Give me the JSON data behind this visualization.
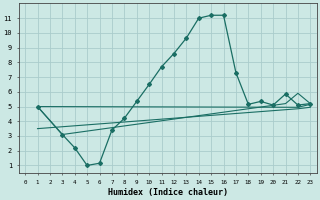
{
  "title": "",
  "xlabel": "Humidex (Indice chaleur)",
  "background_color": "#cce8e4",
  "grid_color": "#aacccc",
  "line_color": "#1a6e64",
  "xlim": [
    -0.5,
    23.5
  ],
  "ylim": [
    0.5,
    12.0
  ],
  "xticks": [
    0,
    1,
    2,
    3,
    4,
    5,
    6,
    7,
    8,
    9,
    10,
    11,
    12,
    13,
    14,
    15,
    16,
    17,
    18,
    19,
    20,
    21,
    22,
    23
  ],
  "yticks": [
    1,
    2,
    3,
    4,
    5,
    6,
    7,
    8,
    9,
    10,
    11
  ],
  "line1_x": [
    1,
    3,
    4,
    5,
    6,
    7,
    8,
    9,
    10,
    11,
    12,
    13,
    14,
    15,
    16,
    17,
    18,
    19,
    20,
    21,
    22,
    23
  ],
  "line1_y": [
    5.0,
    3.1,
    2.2,
    1.0,
    1.15,
    3.4,
    4.2,
    5.35,
    6.5,
    7.7,
    8.6,
    9.65,
    11.0,
    11.2,
    11.2,
    7.3,
    5.15,
    5.35,
    5.1,
    5.85,
    5.1,
    5.2
  ],
  "line2_x": [
    1,
    3,
    21,
    22,
    23
  ],
  "line2_y": [
    5.0,
    3.1,
    5.2,
    5.9,
    5.2
  ],
  "line3_x": [
    1,
    22,
    23
  ],
  "line3_y": [
    5.0,
    4.95,
    5.15
  ],
  "line4_x": [
    1,
    22,
    23
  ],
  "line4_y": [
    3.5,
    4.85,
    4.95
  ]
}
